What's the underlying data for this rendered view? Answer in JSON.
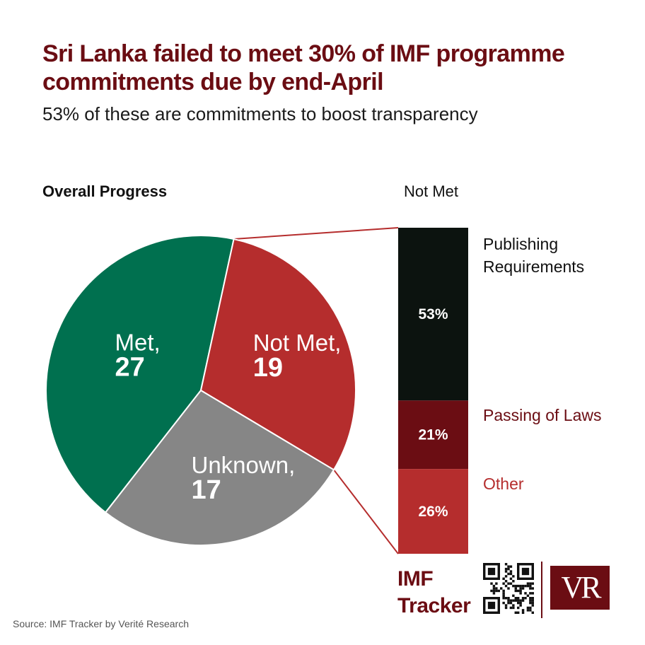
{
  "title": "Sri Lanka failed to meet 30% of IMF programme commitments due by end-April",
  "subtitle": "53% of these are commitments to boost transparency",
  "colors": {
    "met": "#00704f",
    "not_met": "#b52d2d",
    "unknown": "#868686",
    "publishing": "#0c130f",
    "laws": "#6b0d13",
    "other": "#b52d2d",
    "brand": "#6b0d13"
  },
  "chart_data": [
    {
      "type": "pie",
      "title": "Overall Progress",
      "slices": [
        {
          "name": "Met",
          "value": 27,
          "label_name": "Met,",
          "label_value": "27",
          "color": "#00704f"
        },
        {
          "name": "Not Met",
          "value": 19,
          "label_name": "Not Met,",
          "label_value": "19",
          "color": "#b52d2d"
        },
        {
          "name": "Unknown",
          "value": 17,
          "label_name": "Unknown,",
          "label_value": "17",
          "color": "#868686"
        }
      ]
    },
    {
      "type": "bar",
      "stacked": true,
      "title": "Not Met",
      "segments": [
        {
          "name": "Publishing Requirements",
          "value": 53,
          "label": "53%",
          "color": "#0c130f"
        },
        {
          "name": "Passing of Laws",
          "value": 21,
          "label": "21%",
          "color": "#6b0d13"
        },
        {
          "name": "Other",
          "value": 26,
          "label": "26%",
          "color": "#b52d2d"
        }
      ]
    }
  ],
  "brand": {
    "tracker_line1": "IMF",
    "tracker_line2": "Tracker",
    "logo_text": "VR",
    "qr_icon": "qr-code-icon"
  },
  "source": "Source: IMF Tracker by Verité Research"
}
